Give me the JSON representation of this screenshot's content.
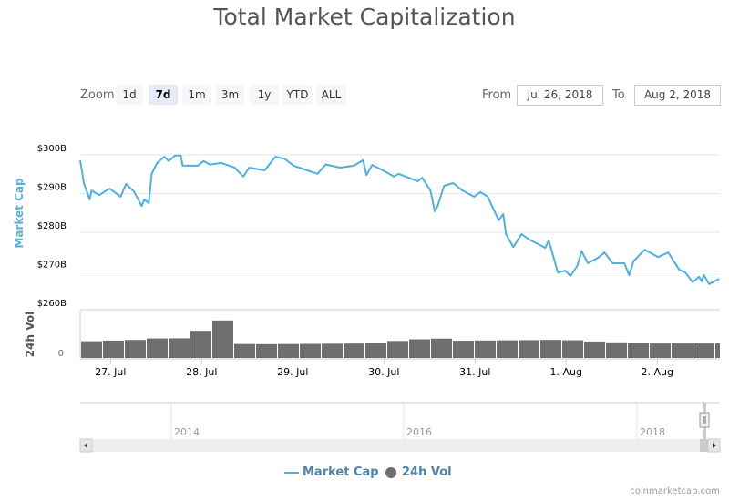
{
  "title": "Total Market Capitalization",
  "zoom": {
    "label": "Zoom",
    "buttons": [
      "1d",
      "7d",
      "1m",
      "3m",
      "1y",
      "YTD",
      "ALL"
    ],
    "selected": "7d"
  },
  "range": {
    "from_label": "From",
    "from_value": "Jul 26, 2018",
    "to_label": "To",
    "to_value": "Aug 2, 2018"
  },
  "navigator": {
    "year_labels": [
      "2014",
      "2016",
      "2018"
    ]
  },
  "legend": [
    {
      "label": "Market Cap",
      "color": "#4fb0e0"
    },
    {
      "label": "24h Vol",
      "color": "#6e6e6e"
    }
  ],
  "credit": "coinmarketcap.com",
  "chart_data": {
    "type": "line",
    "yaxis_label": "Market Cap",
    "yticks": [
      "$260B",
      "$270B",
      "$280B",
      "$290B",
      "$300B"
    ],
    "ylim": [
      260,
      300
    ],
    "y_unit": "B USD",
    "xticks": [
      "27. Jul",
      "28. Jul",
      "29. Jul",
      "30. Jul",
      "31. Jul",
      "1. Aug",
      "2. Aug"
    ],
    "xlim": [
      "2018-07-26T16:00",
      "2018-08-02T16:30"
    ],
    "grid": true,
    "series": [
      {
        "name": "Market Cap",
        "color": "#4fb0e0",
        "points": [
          [
            "2018-07-26T16:00",
            298.6
          ],
          [
            "2018-07-26T17:00",
            292.5
          ],
          [
            "2018-07-26T18:30",
            288.5
          ],
          [
            "2018-07-26T19:00",
            290.8
          ],
          [
            "2018-07-26T21:00",
            289.6
          ],
          [
            "2018-07-26T23:45",
            291.3
          ],
          [
            "2018-07-27T02:40",
            289.2
          ],
          [
            "2018-07-27T04:05",
            292.5
          ],
          [
            "2018-07-27T06:15",
            290.4
          ],
          [
            "2018-07-27T08:10",
            286.8
          ],
          [
            "2018-07-27T08:55",
            288.5
          ],
          [
            "2018-07-27T10:05",
            287.5
          ],
          [
            "2018-07-27T10:50",
            295.1
          ],
          [
            "2018-07-27T12:15",
            297.9
          ],
          [
            "2018-07-27T14:10",
            299.5
          ],
          [
            "2018-07-27T15:20",
            298.4
          ],
          [
            "2018-07-27T17:00",
            299.8
          ],
          [
            "2018-07-27T18:30",
            299.8
          ],
          [
            "2018-07-27T19:00",
            297.2
          ],
          [
            "2018-07-27T23:00",
            297.2
          ],
          [
            "2018-07-28T00:30",
            298.4
          ],
          [
            "2018-07-28T02:10",
            297.5
          ],
          [
            "2018-07-28T05:15",
            297.9
          ],
          [
            "2018-07-28T08:40",
            296.7
          ],
          [
            "2018-07-28T11:00",
            294.4
          ],
          [
            "2018-07-28T12:30",
            296.7
          ],
          [
            "2018-07-28T16:35",
            296.0
          ],
          [
            "2018-07-28T19:25",
            299.5
          ],
          [
            "2018-07-28T21:50",
            299.0
          ],
          [
            "2018-07-29T00:15",
            297.2
          ],
          [
            "2018-07-29T03:50",
            296.0
          ],
          [
            "2018-07-29T06:30",
            295.1
          ],
          [
            "2018-07-29T08:40",
            297.5
          ],
          [
            "2018-07-29T12:30",
            296.7
          ],
          [
            "2018-07-29T16:05",
            297.2
          ],
          [
            "2018-07-29T18:30",
            298.6
          ],
          [
            "2018-07-29T19:25",
            294.8
          ],
          [
            "2018-07-29T20:55",
            297.4
          ],
          [
            "2018-07-29T23:45",
            296.0
          ],
          [
            "2018-07-30T02:40",
            294.4
          ],
          [
            "2018-07-30T03:50",
            295.1
          ],
          [
            "2018-07-30T08:55",
            293.2
          ],
          [
            "2018-07-30T10:05",
            294.1
          ],
          [
            "2018-07-30T12:15",
            290.8
          ],
          [
            "2018-07-30T13:25",
            285.4
          ],
          [
            "2018-07-30T14:10",
            286.8
          ],
          [
            "2018-07-30T15:50",
            292.0
          ],
          [
            "2018-07-30T18:15",
            292.7
          ],
          [
            "2018-07-30T20:40",
            290.8
          ],
          [
            "2018-07-30T23:45",
            289.2
          ],
          [
            "2018-07-31T01:25",
            290.4
          ],
          [
            "2018-07-31T03:20",
            289.2
          ],
          [
            "2018-07-31T06:15",
            283.1
          ],
          [
            "2018-07-31T07:25",
            284.7
          ],
          [
            "2018-07-31T08:10",
            279.5
          ],
          [
            "2018-07-31T10:05",
            276.2
          ],
          [
            "2018-07-31T12:15",
            279.5
          ],
          [
            "2018-07-31T14:40",
            277.9
          ],
          [
            "2018-07-31T18:30",
            276.0
          ],
          [
            "2018-07-31T19:25",
            277.9
          ],
          [
            "2018-07-31T21:50",
            269.6
          ],
          [
            "2018-07-31T23:45",
            270.1
          ],
          [
            "2018-08-01T01:10",
            268.7
          ],
          [
            "2018-08-01T02:55",
            271.3
          ],
          [
            "2018-08-01T04:05",
            275.1
          ],
          [
            "2018-08-01T05:45",
            272.0
          ],
          [
            "2018-08-01T08:40",
            273.6
          ],
          [
            "2018-08-01T10:05",
            274.8
          ],
          [
            "2018-08-01T12:15",
            272.0
          ],
          [
            "2018-08-01T15:20",
            272.0
          ],
          [
            "2018-08-01T16:35",
            268.9
          ],
          [
            "2018-08-01T17:45",
            272.5
          ],
          [
            "2018-08-01T20:40",
            275.5
          ],
          [
            "2018-08-02T00:15",
            273.6
          ],
          [
            "2018-08-02T02:55",
            274.8
          ],
          [
            "2018-08-02T05:45",
            270.4
          ],
          [
            "2018-08-02T07:25",
            269.6
          ],
          [
            "2018-08-02T09:20",
            267.1
          ],
          [
            "2018-08-02T11:00",
            268.5
          ],
          [
            "2018-08-02T11:45",
            267.3
          ],
          [
            "2018-08-02T12:15",
            269.0
          ],
          [
            "2018-08-02T13:40",
            266.6
          ],
          [
            "2018-08-02T16:20",
            268.0
          ]
        ]
      },
      {
        "name": "24h Vol",
        "color": "#6e6e6e",
        "axis_label": "24h Vol",
        "ytick": "0",
        "points": [
          [
            "2018-07-26T16:00",
            10.2
          ],
          [
            "2018-07-27T08:10",
            11.3
          ],
          [
            "2018-07-27T10:50",
            12.4
          ],
          [
            "2018-07-27T17:00",
            11.3
          ],
          [
            "2018-07-27T23:00",
            16
          ],
          [
            "2018-07-28T02:10",
            19
          ],
          [
            "2018-07-28T05:00",
            22
          ],
          [
            "2018-07-28T08:00",
            27.7
          ],
          [
            "2018-07-28T09:00",
            9
          ],
          [
            "2018-07-28T13:00",
            8.5
          ],
          [
            "2018-07-29T19:00",
            9
          ],
          [
            "2018-07-30T14:00",
            12.4
          ],
          [
            "2018-07-30T20:00",
            10.7
          ],
          [
            "2018-07-31T23:45",
            11.3
          ],
          [
            "2018-08-01T09:20",
            10
          ],
          [
            "2018-08-01T23:45",
            9
          ]
        ]
      }
    ]
  }
}
